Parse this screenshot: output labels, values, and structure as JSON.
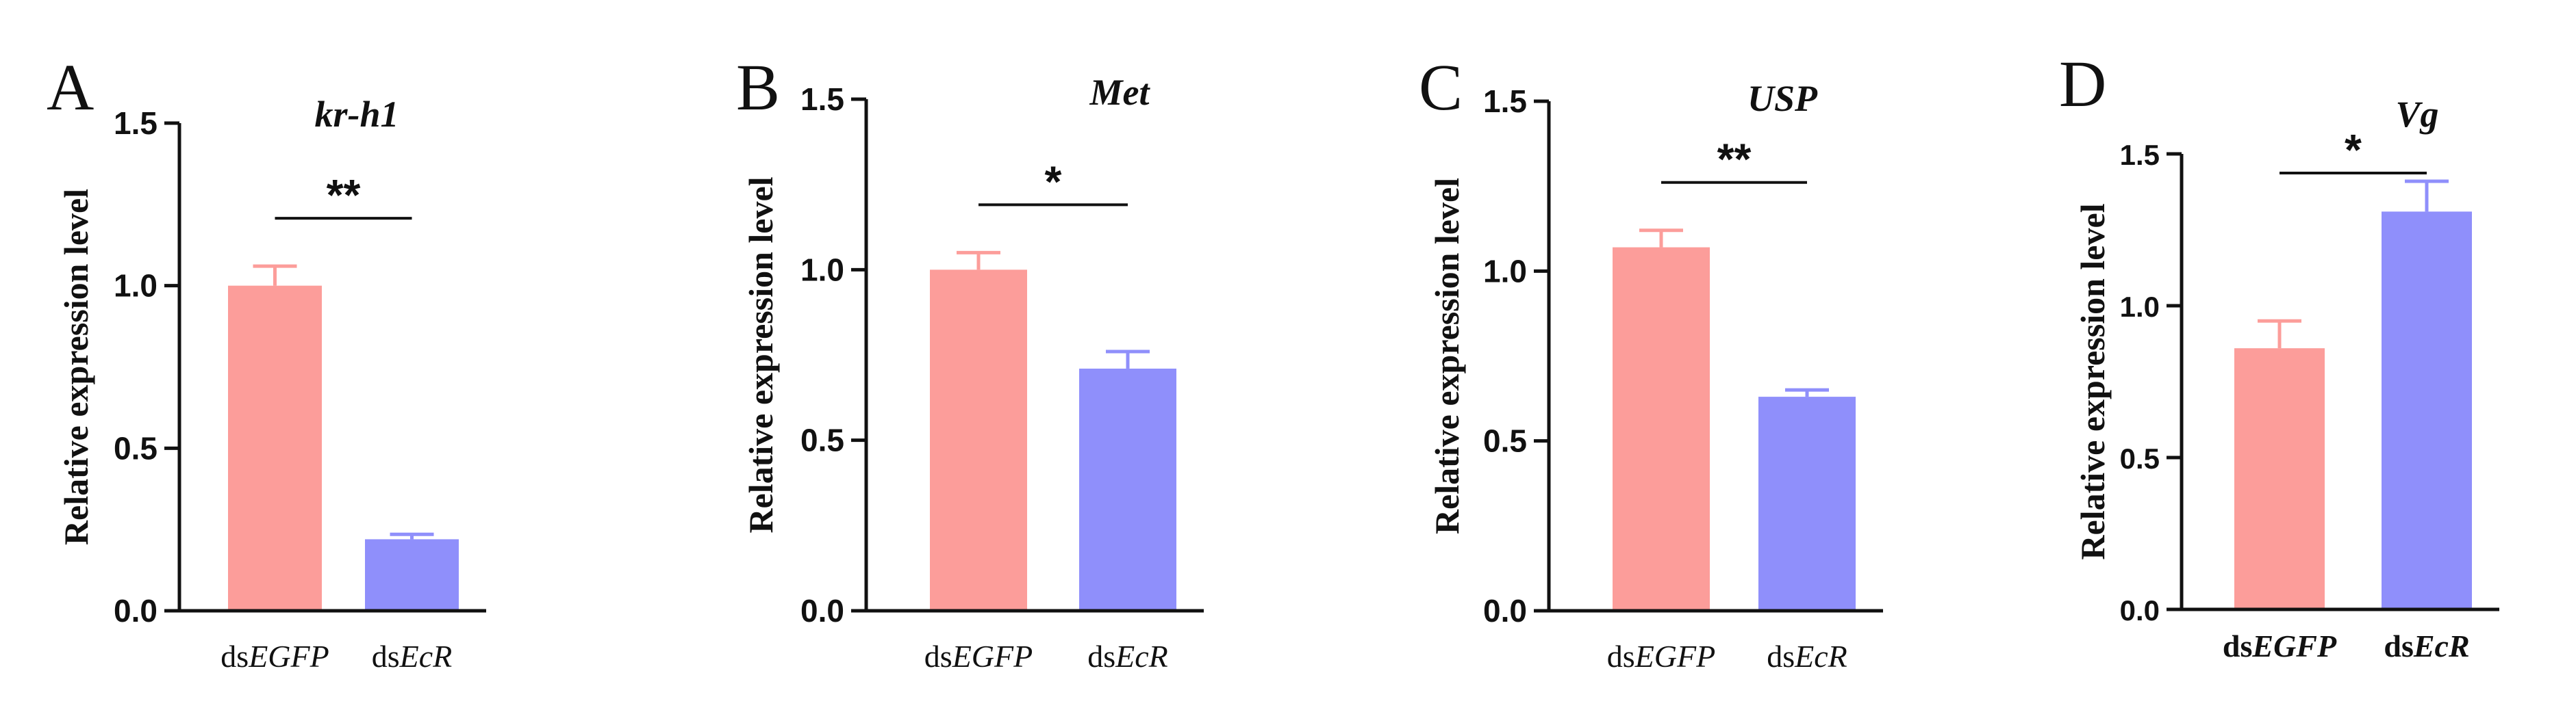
{
  "colors": {
    "dsEGFP": "#fc9d9a",
    "dsEcR": "#8f8ffb",
    "axis": "#111111"
  },
  "chart_data": [
    {
      "panel": "A",
      "type": "bar",
      "title": "kr-h1",
      "ylabel": "Relative expression level",
      "xlabel": "",
      "ylim": [
        0,
        1.5
      ],
      "yticks": [
        "0.0",
        "0.5",
        "1.0",
        "1.5"
      ],
      "categories": [
        {
          "prefix": "ds",
          "name": "EGFP",
          "value": 1.0,
          "error": 0.06
        },
        {
          "prefix": "ds",
          "name": "EcR",
          "value": 0.22,
          "error": 0.015
        }
      ],
      "significance": "**"
    },
    {
      "panel": "B",
      "type": "bar",
      "title": "Met",
      "ylabel": "Relative expression level",
      "xlabel": "",
      "ylim": [
        0,
        1.5
      ],
      "yticks": [
        "0.0",
        "0.5",
        "1.0",
        "1.5"
      ],
      "categories": [
        {
          "prefix": "ds",
          "name": "EGFP",
          "value": 1.0,
          "error": 0.05
        },
        {
          "prefix": "ds",
          "name": "EcR",
          "value": 0.71,
          "error": 0.05
        }
      ],
      "significance": "*"
    },
    {
      "panel": "C",
      "type": "bar",
      "title": "USP",
      "ylabel": "Relative expression level",
      "xlabel": "",
      "ylim": [
        0,
        1.5
      ],
      "yticks": [
        "0.0",
        "0.5",
        "1.0",
        "1.5"
      ],
      "categories": [
        {
          "prefix": "ds",
          "name": "EGFP",
          "value": 1.07,
          "error": 0.05
        },
        {
          "prefix": "ds",
          "name": "EcR",
          "value": 0.63,
          "error": 0.02
        }
      ],
      "significance": "**"
    },
    {
      "panel": "D",
      "type": "bar",
      "title": "Vg",
      "ylabel": "Relative expression level",
      "xlabel": "",
      "ylim": [
        0,
        1.5
      ],
      "yticks": [
        "0.0",
        "0.5",
        "1.0",
        "1.5"
      ],
      "categories": [
        {
          "prefix": "ds",
          "name": "EGFP",
          "value": 0.86,
          "error": 0.09
        },
        {
          "prefix": "ds",
          "name": "EcR",
          "value": 1.31,
          "error": 0.1
        }
      ],
      "significance": "*"
    }
  ]
}
